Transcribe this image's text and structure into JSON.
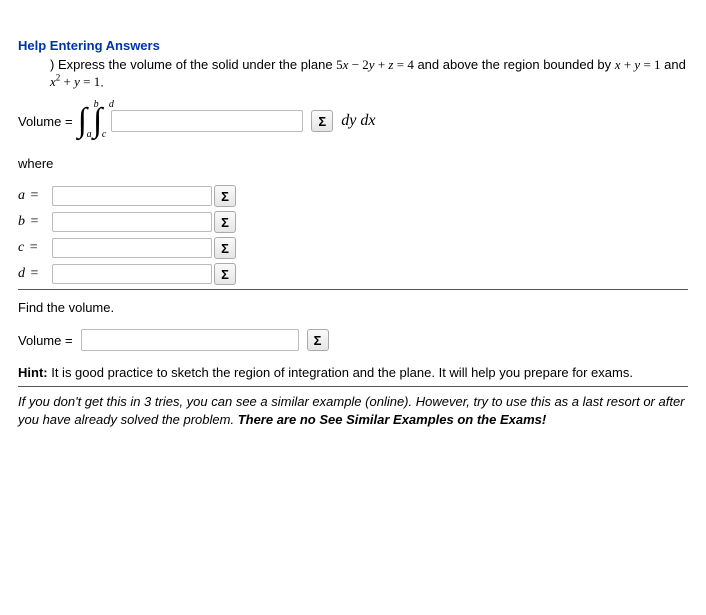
{
  "help_link": "Help Entering Answers",
  "problem_prefix": ") Express the volume of the solid under the plane ",
  "plane_eq": "5x − 2y + z = 4",
  "problem_mid": " and above the region bounded by ",
  "region1": "x + y = 1",
  "problem_and": " and ",
  "region2_pre": "x",
  "region2_sup": "2",
  "region2_post": " + y = 1",
  "period": ".",
  "volume_label": "Volume = ",
  "integral1": {
    "top": "b",
    "bot": "a"
  },
  "integral2": {
    "top": "d",
    "bot": "c"
  },
  "sigma": "Σ",
  "dydx": "dy dx",
  "where": "where",
  "limits": [
    {
      "var": "a",
      "eq": "="
    },
    {
      "var": "b",
      "eq": "="
    },
    {
      "var": "c",
      "eq": "="
    },
    {
      "var": "d",
      "eq": "="
    }
  ],
  "find_volume": "Find the volume.",
  "volume2_label": "Volume = ",
  "hint_bold": "Hint:",
  "hint_text": " It is good practice to sketch the region of integration and the plane. It will help you prepare for exams.",
  "footer1": "If you don't get this in 3 tries, you can see a similar example (online). However, try to use this as a last resort or after you have already solved the problem. ",
  "footer2": "There are no See Similar Examples on the Exams!"
}
